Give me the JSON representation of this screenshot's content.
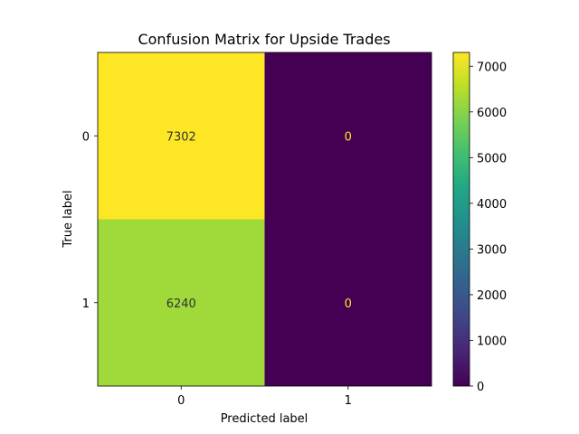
{
  "chart_data": {
    "type": "heatmap",
    "title": "Confusion Matrix for Upside Trades",
    "xlabel": "Predicted label",
    "ylabel": "True label",
    "x_categories": [
      "0",
      "1"
    ],
    "y_categories": [
      "0",
      "1"
    ],
    "matrix": [
      [
        7302,
        0
      ],
      [
        6240,
        0
      ]
    ],
    "cell_labels": [
      [
        "7302",
        "0"
      ],
      [
        "6240",
        "0"
      ]
    ],
    "colormap": "viridis",
    "colorbar": {
      "min": 0,
      "max": 7302,
      "ticks": [
        0,
        1000,
        2000,
        3000,
        4000,
        5000,
        6000,
        7000
      ]
    },
    "grid": false,
    "text_colors": {
      "light_on_dark": "#fde725",
      "dark_on_light": "#333333"
    }
  }
}
